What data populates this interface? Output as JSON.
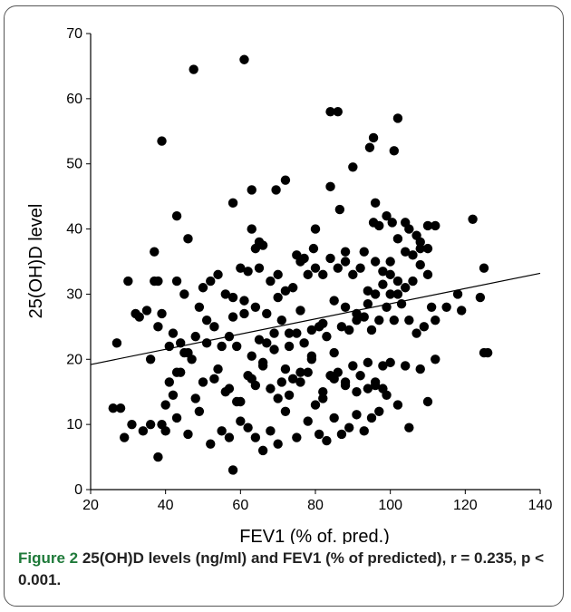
{
  "caption": {
    "label": "Figure 2",
    "text": " 25(OH)D levels (ng/ml) and FEV1 (% of predicted), r = 0.235, p < 0.001."
  },
  "chart_data": {
    "type": "scatter",
    "xlabel": "FEV1 (% of. pred.)",
    "ylabel": "25(OH)D level",
    "xlim": [
      20,
      140
    ],
    "ylim": [
      0,
      70
    ],
    "xticks": [
      20,
      40,
      60,
      80,
      100,
      120,
      140
    ],
    "yticks": [
      0,
      10,
      20,
      30,
      40,
      50,
      60,
      70
    ],
    "grid": false,
    "point_color": "#000000",
    "trendline": {
      "x": [
        20,
        140
      ],
      "y": [
        19.2,
        33.2
      ]
    },
    "x": [
      47.5,
      61,
      39,
      84,
      86,
      102,
      95.5,
      94.5,
      101,
      90,
      84,
      96,
      72,
      69.5,
      63,
      58,
      43,
      100.5,
      104,
      115,
      110,
      107,
      99,
      37,
      46,
      65,
      80,
      86.5,
      63,
      64,
      66,
      75,
      77,
      79.5,
      88,
      93,
      95.5,
      97,
      100,
      102,
      105,
      108,
      38,
      43,
      45,
      50,
      52,
      54,
      56,
      58,
      60,
      62,
      65,
      68,
      70,
      72,
      74,
      76,
      78,
      80,
      82,
      84,
      86,
      88,
      90,
      92,
      94,
      96,
      98,
      100,
      102,
      104,
      106,
      108,
      110,
      112,
      118,
      119,
      122,
      125,
      124,
      27,
      30,
      33,
      35,
      37,
      39,
      41,
      42,
      44,
      46,
      48,
      49,
      51,
      53,
      55,
      57,
      59,
      61,
      63,
      65,
      67,
      69,
      71,
      73,
      75,
      77,
      79,
      81,
      83,
      85,
      87,
      89,
      91,
      93,
      95,
      97,
      99,
      101,
      103,
      105,
      107,
      109,
      111,
      26,
      28,
      32,
      36,
      38,
      40,
      42,
      44,
      47,
      50,
      53,
      56,
      59,
      62,
      64,
      66,
      68,
      70,
      72,
      74,
      76,
      78,
      80,
      82,
      84,
      86,
      88,
      90,
      92,
      94,
      96,
      98,
      100,
      104,
      108,
      112,
      125,
      126,
      29,
      31,
      34,
      36,
      38,
      40,
      43,
      46,
      49,
      52,
      55,
      57,
      58,
      60,
      62,
      64,
      66,
      68,
      70,
      72,
      75,
      78,
      81,
      83,
      85,
      87,
      89,
      91,
      93,
      95,
      97,
      99,
      102,
      105,
      110,
      39,
      41,
      43,
      45,
      48,
      51,
      54,
      57,
      60,
      63,
      66,
      69,
      71,
      73,
      76,
      79,
      82,
      85,
      88,
      91,
      94,
      96,
      98,
      58,
      61,
      64,
      67,
      70,
      73,
      76,
      79,
      82,
      85,
      88,
      91,
      94,
      96,
      98,
      100,
      102,
      104,
      106,
      108,
      110,
      112
    ],
    "y": [
      64.5,
      66,
      53.5,
      58,
      58,
      57,
      54,
      52.5,
      52,
      49.5,
      46.5,
      44,
      47.5,
      46,
      46,
      44,
      42,
      41,
      41,
      28,
      40.5,
      39,
      42,
      36.5,
      38.5,
      38,
      40,
      43,
      40,
      37,
      37.5,
      36,
      35.5,
      37,
      36.5,
      36.5,
      41,
      40.5,
      35,
      38.5,
      40,
      38,
      32,
      32,
      30,
      31,
      32,
      33,
      30,
      29.5,
      34,
      33.5,
      34,
      32,
      33,
      30.5,
      31,
      35,
      33,
      34,
      33,
      35.5,
      34,
      35,
      33,
      34,
      30.5,
      35,
      33.5,
      33,
      30,
      31,
      32,
      37,
      33,
      26,
      30,
      27.5,
      41.5,
      34,
      29.5,
      22.5,
      32,
      26.5,
      27.5,
      32,
      27,
      22,
      24,
      22.5,
      21,
      23.5,
      28,
      26,
      25,
      22,
      23.5,
      22,
      27,
      20.5,
      23,
      22.5,
      24,
      26,
      22,
      24,
      22.5,
      20.5,
      25,
      23.5,
      21,
      25,
      24.5,
      26,
      26.5,
      24.5,
      26,
      28,
      26,
      28.5,
      26,
      24,
      25,
      28,
      12.5,
      12.5,
      27,
      20,
      25,
      13,
      14.5,
      18,
      20,
      16.5,
      17,
      15,
      13.5,
      17.5,
      16,
      19,
      15.5,
      14,
      18.5,
      17,
      16.5,
      18,
      13,
      15,
      17.5,
      18,
      16,
      19,
      17.5,
      15.5,
      16,
      19,
      19.5,
      19,
      18.5,
      20,
      21,
      21,
      8,
      10,
      9,
      10,
      5,
      9,
      11,
      8.5,
      12,
      7,
      9,
      8,
      3,
      10.5,
      9.5,
      8,
      6,
      9,
      7,
      12,
      8,
      10.5,
      8.5,
      7.5,
      11,
      8.5,
      9.5,
      11.5,
      9,
      11,
      12,
      14.5,
      13,
      9.5,
      13.5,
      10,
      16.5,
      18,
      21,
      14,
      22.5,
      18.5,
      15.5,
      13.5,
      17,
      19.5,
      21.5,
      16.5,
      14.5,
      18,
      20,
      14,
      17,
      16.5,
      15,
      19.5,
      16.5,
      15.5,
      26.5,
      29,
      28,
      27,
      29.5,
      24,
      27.5,
      24.5,
      25.5,
      29,
      28,
      27,
      28.5,
      30,
      31.5,
      30,
      32,
      36.5,
      36,
      34.5,
      37,
      40.5
    ]
  }
}
